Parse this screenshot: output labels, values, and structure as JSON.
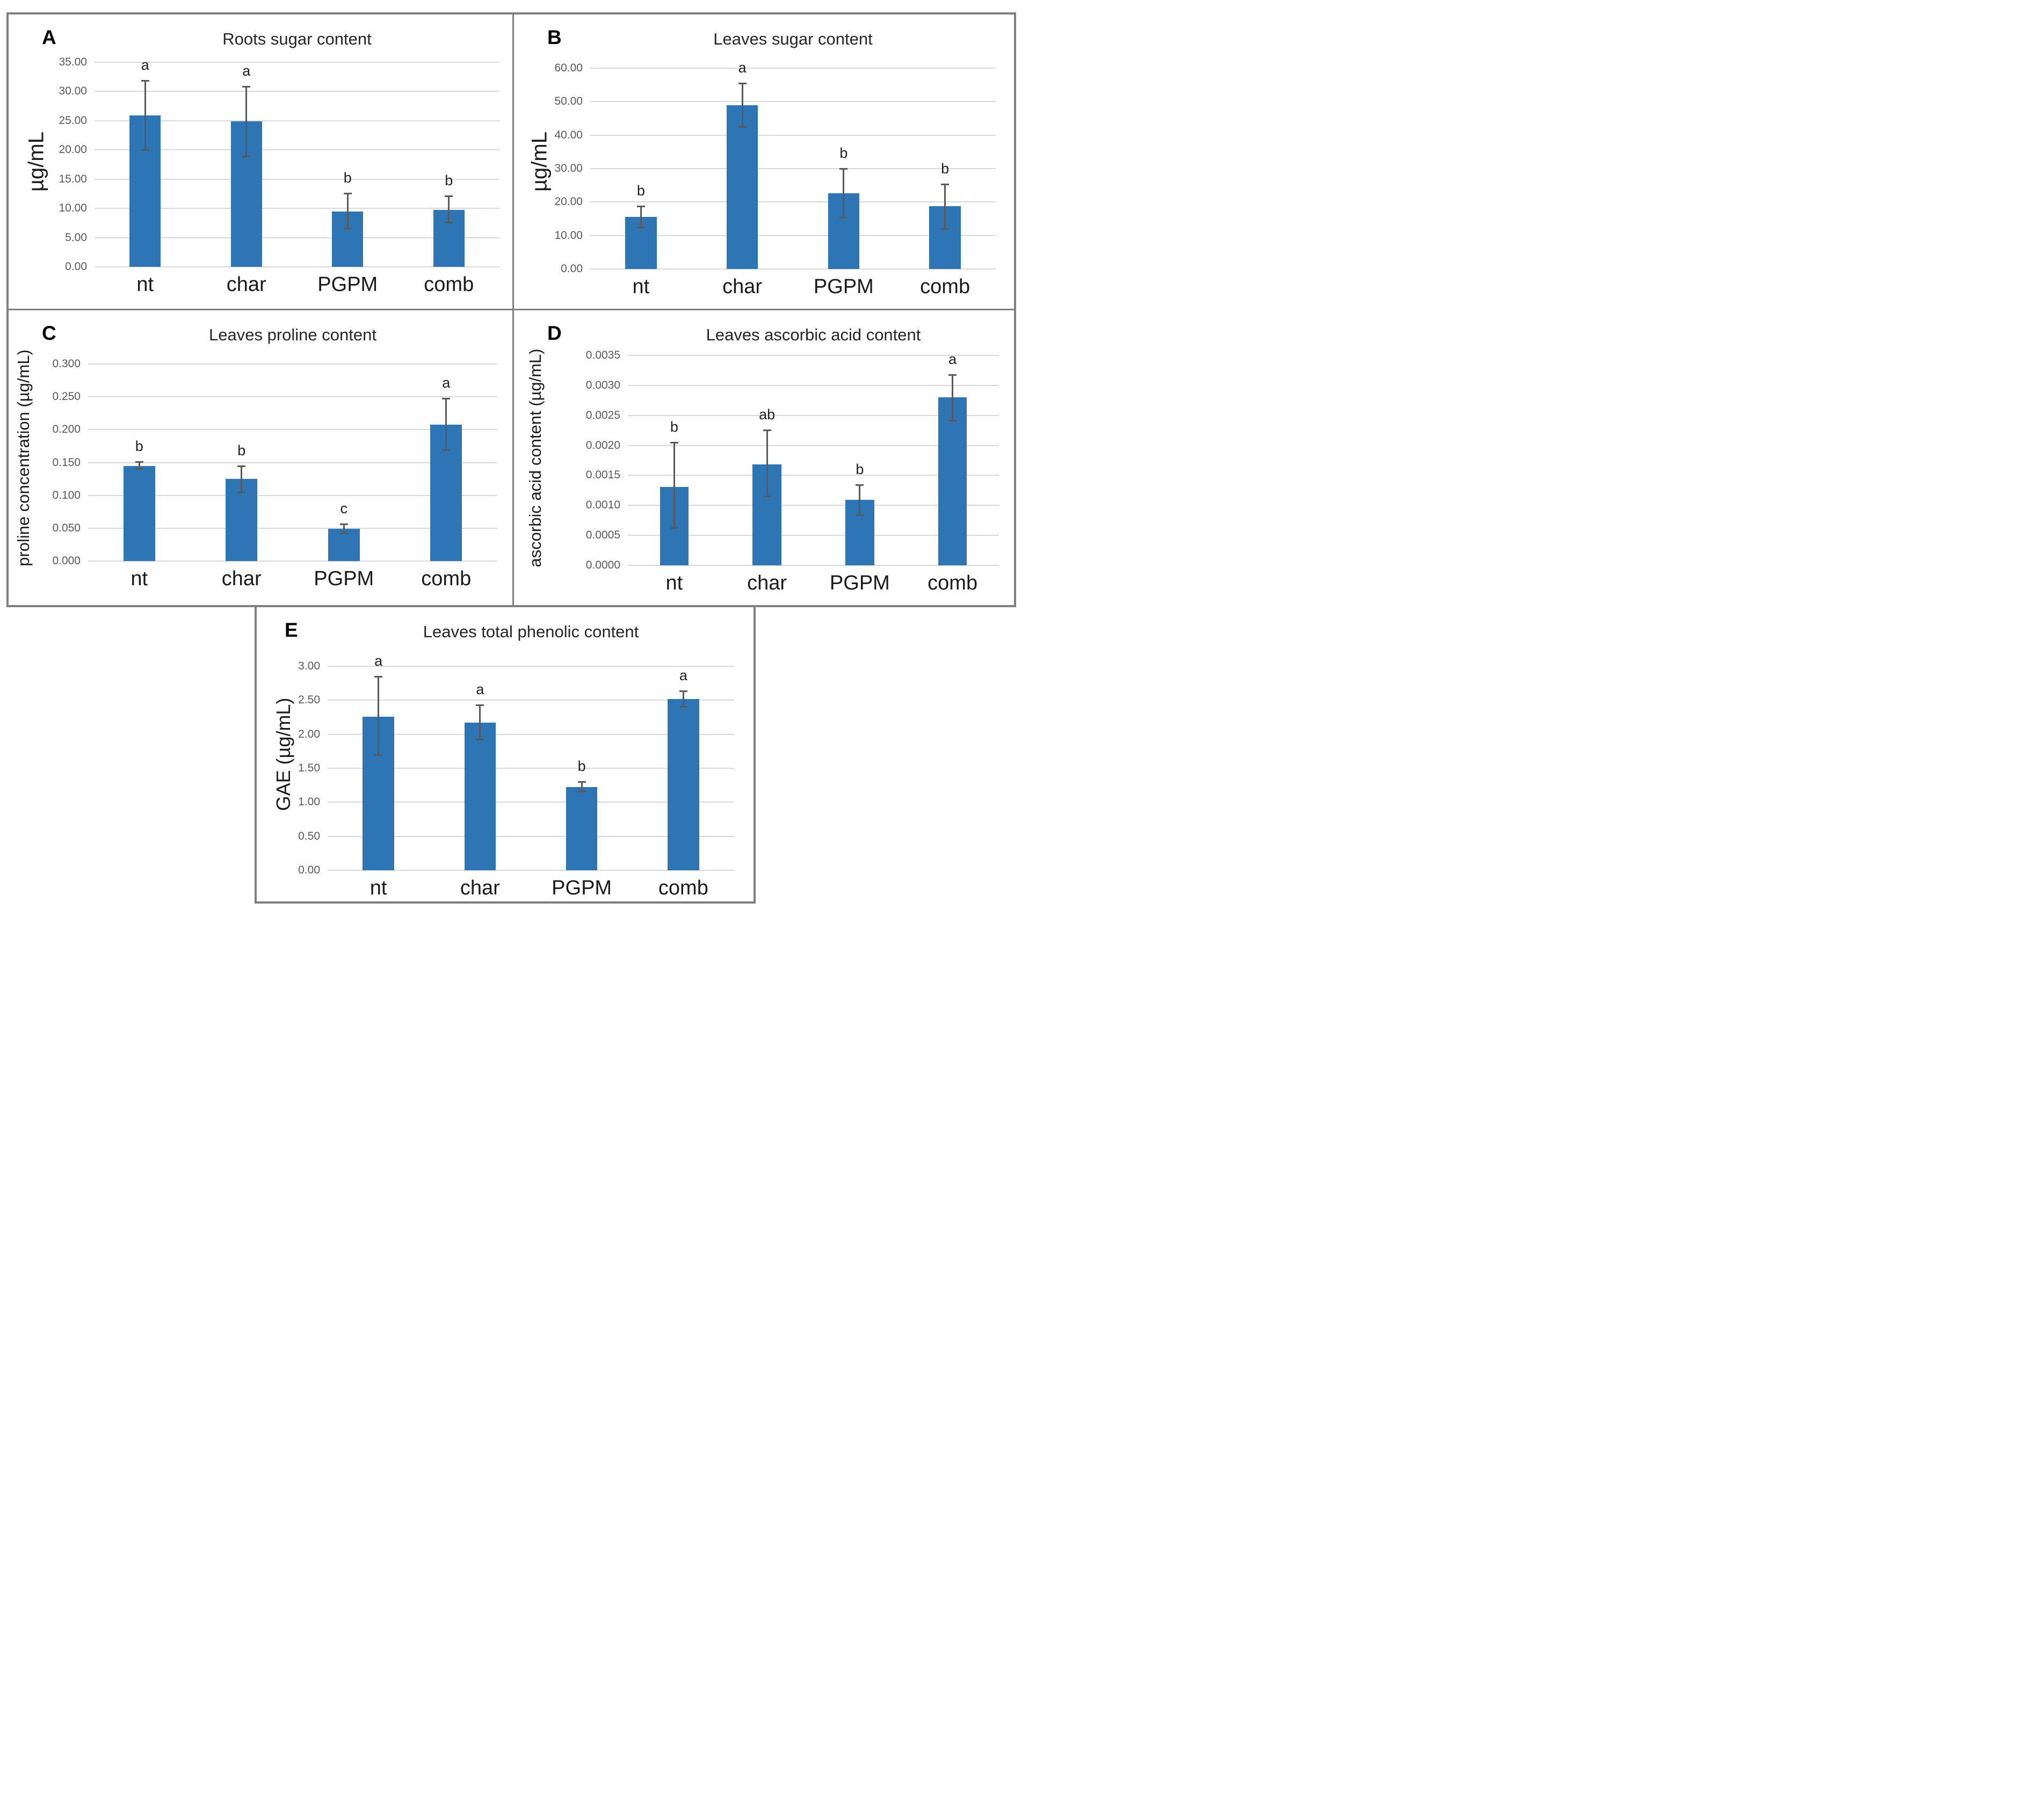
{
  "colors": {
    "bar_fill": "#2e75b6",
    "error_bar": "#595959",
    "gridline": "#d9d9d9",
    "frame_border": "#7f7f7f",
    "tick_text": "#595959",
    "label_text": "#1a1a1a"
  },
  "chart_data": [
    {
      "type": "bar",
      "panel_letter": "A",
      "title": "Roots sugar content",
      "ylabel": "µg/mL",
      "xlabel": "",
      "categories": [
        "nt",
        "char",
        "PGPM",
        "comb"
      ],
      "values": [
        25.9,
        24.9,
        9.5,
        9.7
      ],
      "error_low": [
        19.9,
        18.8,
        6.5,
        7.5
      ],
      "error_high": [
        31.9,
        30.9,
        12.6,
        12.1
      ],
      "sig_letters": [
        "a",
        "a",
        "b",
        "b"
      ],
      "ylim": [
        0,
        35
      ],
      "grid": true,
      "ticks": [
        {
          "value": 0,
          "label": "0.00"
        },
        {
          "value": 5,
          "label": "5.00"
        },
        {
          "value": 10,
          "label": "10.00"
        },
        {
          "value": 15,
          "label": "15.00"
        },
        {
          "value": 20,
          "label": "20.00"
        },
        {
          "value": 25,
          "label": "25.00"
        },
        {
          "value": 30,
          "label": "30.00"
        },
        {
          "value": 35,
          "label": "35.00"
        }
      ]
    },
    {
      "type": "bar",
      "panel_letter": "B",
      "title": "Leaves sugar content",
      "ylabel": "µg/mL",
      "xlabel": "",
      "categories": [
        "nt",
        "char",
        "PGPM",
        "comb"
      ],
      "values": [
        15.5,
        48.9,
        22.6,
        18.7
      ],
      "error_low": [
        12.3,
        42.4,
        15.3,
        11.9
      ],
      "error_high": [
        18.8,
        55.5,
        30.0,
        25.4
      ],
      "sig_letters": [
        "b",
        "a",
        "b",
        "b"
      ],
      "ylim": [
        0,
        60
      ],
      "grid": true,
      "ticks": [
        {
          "value": 0,
          "label": "0.00"
        },
        {
          "value": 10,
          "label": "10.00"
        },
        {
          "value": 20,
          "label": "20.00"
        },
        {
          "value": 30,
          "label": "30.00"
        },
        {
          "value": 40,
          "label": "40.00"
        },
        {
          "value": 50,
          "label": "50.00"
        },
        {
          "value": 60,
          "label": "60.00"
        }
      ]
    },
    {
      "type": "bar",
      "panel_letter": "C",
      "title": "Leaves proline content",
      "ylabel": "proline concentration (µg/mL)",
      "xlabel": "",
      "categories": [
        "nt",
        "char",
        "PGPM",
        "comb"
      ],
      "values": [
        0.145,
        0.125,
        0.049,
        0.208
      ],
      "error_low": [
        0.14,
        0.104,
        0.042,
        0.168
      ],
      "error_high": [
        0.151,
        0.145,
        0.056,
        0.248
      ],
      "sig_letters": [
        "b",
        "b",
        "c",
        "a"
      ],
      "ylim": [
        0,
        0.3
      ],
      "grid": true,
      "ticks": [
        {
          "value": 0,
          "label": "0.000"
        },
        {
          "value": 0.05,
          "label": "0.050"
        },
        {
          "value": 0.1,
          "label": "0.100"
        },
        {
          "value": 0.15,
          "label": "0.150"
        },
        {
          "value": 0.2,
          "label": "0.200"
        },
        {
          "value": 0.25,
          "label": "0.250"
        },
        {
          "value": 0.3,
          "label": "0.300"
        }
      ]
    },
    {
      "type": "bar",
      "panel_letter": "D",
      "title": "Leaves ascorbic acid content",
      "ylabel": "ascorbic acid content (µg/mL)",
      "xlabel": "",
      "categories": [
        "nt",
        "char",
        "PGPM",
        "comb"
      ],
      "values": [
        0.00131,
        0.00168,
        0.00109,
        0.0028
      ],
      "error_low": [
        0.00062,
        0.00115,
        0.00083,
        0.00241
      ],
      "error_high": [
        0.00205,
        0.00226,
        0.00134,
        0.00318
      ],
      "sig_letters": [
        "b",
        "ab",
        "b",
        "a"
      ],
      "ylim": [
        0,
        0.0035
      ],
      "grid": true,
      "ticks": [
        {
          "value": 0,
          "label": "0.0000"
        },
        {
          "value": 0.0005,
          "label": "0.0005"
        },
        {
          "value": 0.001,
          "label": "0.0010"
        },
        {
          "value": 0.0015,
          "label": "0.0015"
        },
        {
          "value": 0.002,
          "label": "0.0020"
        },
        {
          "value": 0.0025,
          "label": "0.0025"
        },
        {
          "value": 0.003,
          "label": "0.0030"
        },
        {
          "value": 0.0035,
          "label": "0.0035"
        }
      ]
    },
    {
      "type": "bar",
      "panel_letter": "E",
      "title": "Leaves total phenolic content",
      "ylabel": "GAE (µg/mL)",
      "xlabel": "",
      "categories": [
        "nt",
        "char",
        "PGPM",
        "comb"
      ],
      "values": [
        2.26,
        2.17,
        1.22,
        2.52
      ],
      "error_low": [
        1.69,
        1.92,
        1.15,
        2.4
      ],
      "error_high": [
        2.85,
        2.43,
        1.3,
        2.64
      ],
      "sig_letters": [
        "a",
        "a",
        "b",
        "a"
      ],
      "ylim": [
        0,
        3
      ],
      "grid": true,
      "ticks": [
        {
          "value": 0,
          "label": "0.00"
        },
        {
          "value": 0.5,
          "label": "0.50"
        },
        {
          "value": 1,
          "label": "1.00"
        },
        {
          "value": 1.5,
          "label": "1.50"
        },
        {
          "value": 2,
          "label": "2.00"
        },
        {
          "value": 2.5,
          "label": "2.50"
        },
        {
          "value": 3,
          "label": "3.00"
        }
      ]
    }
  ]
}
